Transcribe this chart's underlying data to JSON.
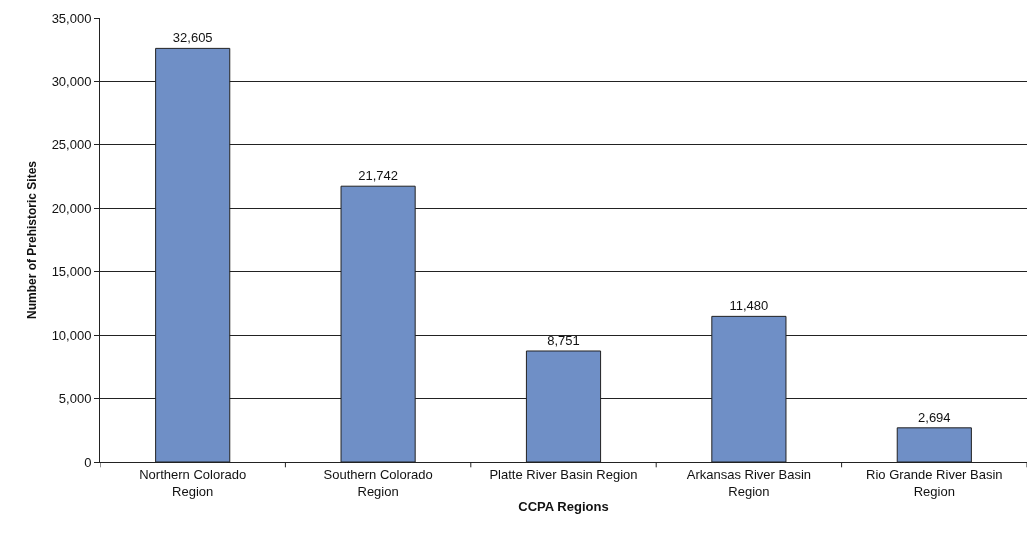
{
  "chart_data": {
    "type": "bar",
    "xlabel": "CCPA Regions",
    "ylabel": "Number of Prehistoric Sites",
    "categories": [
      "Northern Colorado\nRegion",
      "Southern Colorado\nRegion",
      "Platte River Basin Region",
      "Arkansas River Basin\nRegion",
      "Rio Grande River Basin\nRegion"
    ],
    "values": [
      32605,
      21742,
      8751,
      11480,
      2694
    ],
    "value_labels": [
      "32,605",
      "21,742",
      "8,751",
      "11,480",
      "2,694"
    ],
    "color": "#6f8fc6",
    "grid": "y",
    "ylim": [
      0,
      35000
    ],
    "yticks": [
      {
        "value": 0,
        "label": "0"
      },
      {
        "value": 5000,
        "label": "5,000"
      },
      {
        "value": 10000,
        "label": "10,000"
      },
      {
        "value": 15000,
        "label": "15,000"
      },
      {
        "value": 20000,
        "label": "20,000"
      },
      {
        "value": 25000,
        "label": "25,000"
      },
      {
        "value": 30000,
        "label": "30,000"
      },
      {
        "value": 35000,
        "label": "35,000"
      }
    ]
  }
}
